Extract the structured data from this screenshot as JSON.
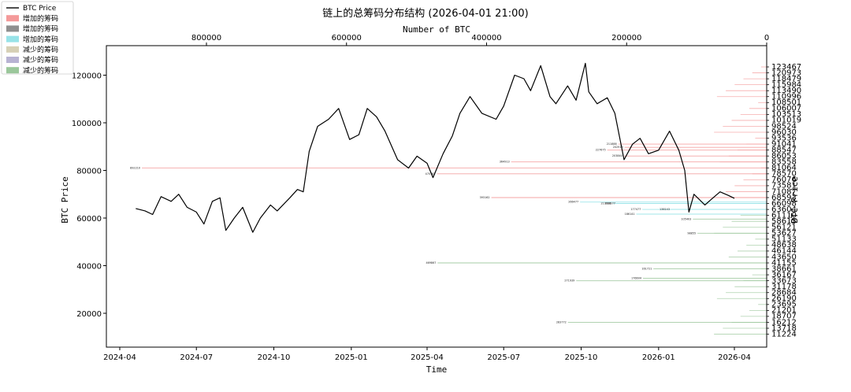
{
  "chart_data": {
    "type": "line",
    "title": "链上的总筹码分布结构 (2026-04-01 21:00)",
    "xlabel": "Time",
    "ylabel": "BTC Price",
    "ylabel_right": "BTC Price",
    "top_xlabel": "Number of BTC",
    "x_ticks": [
      "2024-04",
      "2024-07",
      "2024-10",
      "2025-01",
      "2025-04",
      "2025-07",
      "2025-10",
      "2026-01",
      "2026-04"
    ],
    "y_ticks": [
      "20000",
      "40000",
      "60000",
      "80000",
      "100000",
      "120000"
    ],
    "top_ticks": [
      "800000",
      "600000",
      "400000",
      "200000",
      "0"
    ],
    "right_ticks": [
      "123467",
      "120973",
      "118479",
      "115984",
      "113490",
      "110996",
      "108501",
      "106007",
      "103513",
      "101019",
      "98524",
      "96030",
      "93536",
      "91041",
      "88547",
      "86053",
      "83558",
      "81064",
      "78570",
      "76076",
      "73581",
      "71087",
      "68593",
      "66098",
      "63604",
      "61110",
      "58615",
      "56121",
      "53627",
      "51133",
      "48638",
      "46144",
      "43650",
      "41155",
      "38661",
      "36167",
      "33673",
      "31178",
      "28684",
      "26190",
      "23695",
      "21201",
      "18707",
      "16212",
      "13718",
      "11224"
    ],
    "legend": {
      "position": "top-left",
      "entries": [
        {
          "label": "BTC Price",
          "kind": "line",
          "color": "#000000"
        },
        {
          "label": "增加的筹码",
          "kind": "patch",
          "color": "#f49a9a"
        },
        {
          "label": "增加的筹码",
          "kind": "patch",
          "color": "#8f8f8f"
        },
        {
          "label": "增加的筹码",
          "kind": "patch",
          "color": "#97e3e8"
        },
        {
          "label": "减少的筹码",
          "kind": "patch",
          "color": "#d6d0b6"
        },
        {
          "label": "减少的筹码",
          "kind": "patch",
          "color": "#b8b3d3"
        },
        {
          "label": "减少的筹码",
          "kind": "patch",
          "color": "#9bc79b"
        }
      ]
    },
    "price_series": {
      "name": "BTC Price",
      "x": [
        "2024-04-20",
        "2024-05-01",
        "2024-05-10",
        "2024-05-20",
        "2024-06-01",
        "2024-06-10",
        "2024-06-20",
        "2024-07-01",
        "2024-07-10",
        "2024-07-20",
        "2024-07-29",
        "2024-08-05",
        "2024-08-15",
        "2024-08-25",
        "2024-09-06",
        "2024-09-15",
        "2024-09-27",
        "2024-10-05",
        "2024-10-20",
        "2024-10-29",
        "2024-11-05",
        "2024-11-12",
        "2024-11-22",
        "2024-12-05",
        "2024-12-17",
        "2024-12-30",
        "2025-01-10",
        "2025-01-20",
        "2025-01-31",
        "2025-02-10",
        "2025-02-25",
        "2025-03-10",
        "2025-03-20",
        "2025-04-01",
        "2025-04-08",
        "2025-04-20",
        "2025-05-01",
        "2025-05-10",
        "2025-05-22",
        "2025-06-05",
        "2025-06-22",
        "2025-07-01",
        "2025-07-14",
        "2025-07-25",
        "2025-08-02",
        "2025-08-14",
        "2025-08-25",
        "2025-09-01",
        "2025-09-15",
        "2025-09-25",
        "2025-10-06",
        "2025-10-10",
        "2025-10-20",
        "2025-11-01",
        "2025-11-10",
        "2025-11-21",
        "2025-12-01",
        "2025-12-10",
        "2025-12-20",
        "2026-01-01",
        "2026-01-14",
        "2026-01-25",
        "2026-02-01",
        "2026-02-06",
        "2026-02-12",
        "2026-02-25",
        "2026-03-05",
        "2026-03-15",
        "2026-03-25",
        "2026-04-01"
      ],
      "values": [
        64000,
        63000,
        61500,
        69000,
        67000,
        70000,
        64500,
        62500,
        57500,
        67000,
        68500,
        54800,
        60000,
        64500,
        54000,
        60000,
        65500,
        63000,
        68500,
        72000,
        71000,
        88000,
        98500,
        101500,
        106000,
        93000,
        95000,
        106000,
        102500,
        96500,
        84500,
        81000,
        86000,
        83000,
        77000,
        87000,
        94500,
        104000,
        111000,
        104000,
        101500,
        107000,
        120000,
        118500,
        113500,
        124000,
        111000,
        108000,
        115500,
        109500,
        125000,
        113000,
        108000,
        110500,
        104000,
        84500,
        91000,
        93500,
        87000,
        88500,
        96500,
        88500,
        80000,
        62500,
        70000,
        65500,
        68000,
        71000,
        69500,
        68300
      ]
    },
    "chips": [
      {
        "price": 81064,
        "amount": 892210,
        "label": "892210"
      },
      {
        "price": 83558,
        "amount": 364913,
        "label": "364913"
      },
      {
        "price": 86053,
        "amount": 203840,
        "label": "203840"
      },
      {
        "price": 88547,
        "amount": 227675,
        "label": "227675"
      },
      {
        "price": 89700,
        "amount": 202910,
        "label": "202910"
      },
      {
        "price": 91041,
        "amount": 211888,
        "label": "211888"
      },
      {
        "price": 78570,
        "amount": 470762,
        "label": "470762"
      },
      {
        "price": 68593,
        "amount": 393162,
        "label": "393162"
      },
      {
        "price": 66700,
        "amount": 266477,
        "label": "266477"
      },
      {
        "price": 66098,
        "amount": 219996,
        "label": "219996"
      },
      {
        "price": 66098,
        "amount": 213877,
        "label": "213877"
      },
      {
        "price": 63604,
        "amount": 177477,
        "label": "177477"
      },
      {
        "price": 61650,
        "amount": 186141,
        "label": "186141"
      },
      {
        "price": 63604,
        "amount": 136143,
        "label": "136143"
      },
      {
        "price": 41155,
        "amount": 469867,
        "label": "469867"
      },
      {
        "price": 38661,
        "amount": 161721,
        "label": "161721"
      },
      {
        "price": 33673,
        "amount": 271939,
        "label": "271939"
      },
      {
        "price": 34700,
        "amount": 176604,
        "label": "176604"
      },
      {
        "price": 16212,
        "amount": 283772,
        "label": "283772"
      },
      {
        "price": 53627,
        "amount": 98855,
        "label": "98855"
      },
      {
        "price": 59570,
        "amount": 105403,
        "label": "105403"
      }
    ]
  }
}
